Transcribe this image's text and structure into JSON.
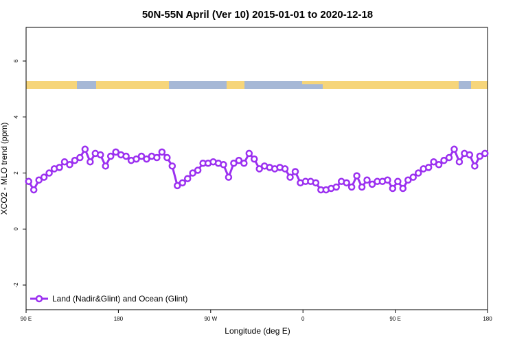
{
  "chart_data": {
    "type": "line",
    "title": "50N-55N April (Ver 10)   2015-01-01 to 2020-12-18",
    "x_label": "Longitude (deg E)",
    "y_label": "XCO2 - MLO trend (ppm)",
    "x": [
      92.5,
      97.5,
      102.5,
      107.5,
      112.5,
      117.5,
      122.5,
      127.5,
      132.5,
      137.5,
      142.5,
      147.5,
      152.5,
      157.5,
      162.5,
      167.5,
      172.5,
      177.5,
      182.5,
      187.5,
      192.5,
      197.5,
      202.5,
      207.5,
      212.5,
      217.5,
      222.5,
      227.5,
      232.5,
      237.5,
      242.5,
      247.5,
      252.5,
      257.5,
      262.5,
      267.5,
      272.5,
      277.5,
      282.5,
      287.5,
      292.5,
      297.5,
      302.5,
      307.5,
      312.5,
      317.5,
      322.5,
      327.5,
      332.5,
      337.5,
      342.5,
      347.5,
      352.5,
      357.5,
      362.5,
      367.5,
      372.5,
      377.5,
      382.5,
      387.5,
      392.5,
      397.5,
      402.5,
      407.5,
      412.5,
      417.5,
      422.5,
      427.5,
      432.5,
      437.5,
      442.5,
      447.5,
      452.5,
      457.5,
      462.5,
      467.5,
      472.5,
      477.5,
      482.5,
      487.5,
      492.5,
      497.5,
      502.5,
      507.5,
      512.5,
      517.5,
      522.5,
      527.5,
      532.5,
      537.5
    ],
    "series": [
      {
        "name": "Land (Nadir&Glint) and Ocean (Glint)",
        "color": "#9b30f0",
        "values": [
          1.7,
          1.4,
          1.75,
          1.85,
          2.0,
          2.15,
          2.2,
          2.4,
          2.3,
          2.45,
          2.55,
          2.85,
          2.4,
          2.7,
          2.65,
          2.25,
          2.6,
          2.75,
          2.65,
          2.6,
          2.45,
          2.5,
          2.6,
          2.5,
          2.6,
          2.55,
          2.75,
          2.55,
          2.25,
          1.55,
          1.65,
          1.8,
          2.0,
          2.1,
          2.35,
          2.35,
          2.4,
          2.35,
          2.3,
          1.85,
          2.35,
          2.45,
          2.35,
          2.7,
          2.5,
          2.15,
          2.25,
          2.2,
          2.15,
          2.2,
          2.15,
          1.85,
          2.05,
          1.65,
          1.7,
          1.7,
          1.65,
          1.4,
          1.4,
          1.45,
          1.5,
          1.7,
          1.65,
          1.5,
          1.9,
          1.5,
          1.75,
          1.6,
          1.7,
          1.7,
          1.75,
          1.45,
          1.7,
          1.45,
          1.75,
          1.85,
          2.0,
          2.15,
          2.2,
          2.4,
          2.3,
          2.45,
          2.55,
          2.85,
          2.4,
          2.7,
          2.65,
          2.25,
          2.6,
          2.7
        ]
      }
    ],
    "xlim": [
      90,
      540
    ],
    "xticks": [
      {
        "value": 90,
        "label": "90 E"
      },
      180,
      {
        "value": 270,
        "label": "90 W"
      },
      {
        "value": 360,
        "label": "0"
      },
      {
        "value": 450,
        "label": "90 E"
      },
      {
        "value": 540,
        "label": "180"
      }
    ],
    "ylim": [
      -2.88,
      7.2
    ],
    "yticks": [
      -2,
      0,
      2,
      4,
      6
    ],
    "legend": "bottom-left"
  }
}
